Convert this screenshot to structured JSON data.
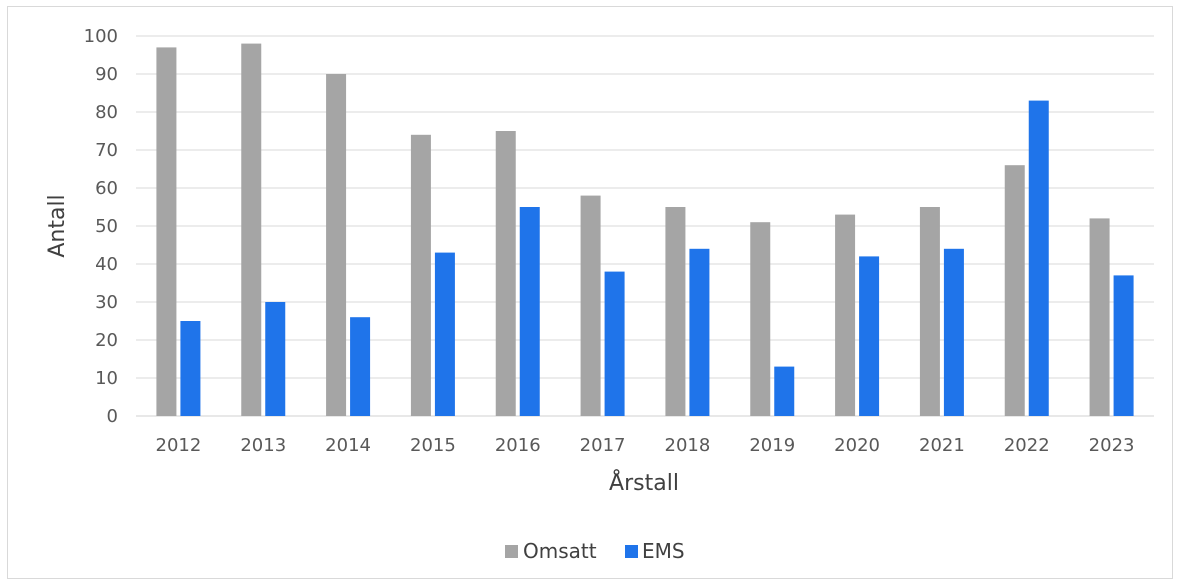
{
  "chart_data": {
    "type": "bar",
    "categories": [
      "2012",
      "2013",
      "2014",
      "2015",
      "2016",
      "2017",
      "2018",
      "2019",
      "2020",
      "2021",
      "2022",
      "2023"
    ],
    "series": [
      {
        "name": "Omsatt",
        "color": "#a5a5a5",
        "values": [
          97,
          98,
          90,
          74,
          75,
          58,
          55,
          51,
          53,
          55,
          66,
          52
        ]
      },
      {
        "name": "EMS",
        "color": "#1f74ea",
        "values": [
          25,
          30,
          26,
          43,
          55,
          38,
          44,
          13,
          42,
          44,
          83,
          37
        ]
      }
    ],
    "title": "",
    "xlabel": "Årstall",
    "ylabel": "Antall",
    "ylim": [
      0,
      100
    ],
    "yticks": [
      0,
      10,
      20,
      30,
      40,
      50,
      60,
      70,
      80,
      90,
      100
    ],
    "grid": true,
    "legend": "bottom-center"
  }
}
